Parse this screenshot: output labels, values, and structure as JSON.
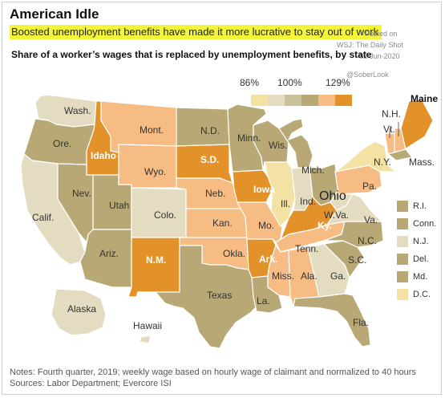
{
  "header": {
    "headline": "American Idle",
    "subhead": "Boosted unemployment benefits have made it more lucrative to stay out of work",
    "chart_title": "Share of a worker’s wages that is replaced by unemployment benefits, by state"
  },
  "watermark": {
    "posted": "Posted on",
    "source": "WSJ: The Daily Shot",
    "date": "02-Jun-2020",
    "handle": "@SoberLook"
  },
  "scale": {
    "labels": [
      "86%",
      "100%",
      "129%"
    ],
    "colors": [
      "#f3e2a4",
      "#e3dcc0",
      "#c7c29a",
      "#b8a875",
      "#f6bc84",
      "#e39229"
    ]
  },
  "map": {
    "states": [
      {
        "abbr": "Wash.",
        "fill": "#e3dcc0"
      },
      {
        "abbr": "Ore.",
        "fill": "#b8a875"
      },
      {
        "abbr": "Calif.",
        "fill": "#e3dcc0"
      },
      {
        "abbr": "Idaho",
        "fill": "#e39229"
      },
      {
        "abbr": "Nev.",
        "fill": "#b8a875"
      },
      {
        "abbr": "Utah",
        "fill": "#b8a875"
      },
      {
        "abbr": "Ariz.",
        "fill": "#b8a875"
      },
      {
        "abbr": "Mont.",
        "fill": "#f6bc84"
      },
      {
        "abbr": "Wyo.",
        "fill": "#f6bc84"
      },
      {
        "abbr": "Colo.",
        "fill": "#e3dcc0"
      },
      {
        "abbr": "N.M.",
        "fill": "#e39229"
      },
      {
        "abbr": "N.D.",
        "fill": "#b8a875"
      },
      {
        "abbr": "S.D.",
        "fill": "#e39229"
      },
      {
        "abbr": "Neb.",
        "fill": "#f6bc84"
      },
      {
        "abbr": "Kan.",
        "fill": "#f6bc84"
      },
      {
        "abbr": "Okla.",
        "fill": "#f6bc84"
      },
      {
        "abbr": "Texas",
        "fill": "#b8a875"
      },
      {
        "abbr": "Minn.",
        "fill": "#b8a875"
      },
      {
        "abbr": "Iowa",
        "fill": "#e39229"
      },
      {
        "abbr": "Mo.",
        "fill": "#f6bc84"
      },
      {
        "abbr": "Ark.",
        "fill": "#e39229"
      },
      {
        "abbr": "La.",
        "fill": "#b8a875"
      },
      {
        "abbr": "Wis.",
        "fill": "#b8a875"
      },
      {
        "abbr": "Ill.",
        "fill": "#f3e2a4"
      },
      {
        "abbr": "Mich.",
        "fill": "#b8a875"
      },
      {
        "abbr": "Ind.",
        "fill": "#e3dcc0"
      },
      {
        "abbr": "Ohio",
        "fill": "#b8a875"
      },
      {
        "abbr": "Ky.",
        "fill": "#e39229"
      },
      {
        "abbr": "Tenn.",
        "fill": "#f6bc84"
      },
      {
        "abbr": "Miss.",
        "fill": "#f6bc84"
      },
      {
        "abbr": "Ala.",
        "fill": "#f6bc84"
      },
      {
        "abbr": "Ga.",
        "fill": "#e3dcc0"
      },
      {
        "abbr": "Fla.",
        "fill": "#b8a875"
      },
      {
        "abbr": "S.C.",
        "fill": "#b8a875"
      },
      {
        "abbr": "N.C.",
        "fill": "#b8a875"
      },
      {
        "abbr": "Va.",
        "fill": "#e3dcc0"
      },
      {
        "abbr": "W.Va.",
        "fill": "#e3dcc0"
      },
      {
        "abbr": "Pa.",
        "fill": "#f6bc84"
      },
      {
        "abbr": "N.Y.",
        "fill": "#f3e2a4"
      },
      {
        "abbr": "Vt.",
        "fill": "#f6bc84"
      },
      {
        "abbr": "N.H.",
        "fill": "#f6bc84"
      },
      {
        "abbr": "Maine",
        "fill": "#e39229"
      },
      {
        "abbr": "Mass.",
        "fill": "#b8a875"
      },
      {
        "abbr": "Alaska",
        "fill": "#e3dcc0"
      },
      {
        "abbr": "Hawaii",
        "fill": "#e3dcc0"
      }
    ],
    "side_legend": [
      {
        "label": "R.I.",
        "fill": "#b8a875"
      },
      {
        "label": "Conn.",
        "fill": "#b8a875"
      },
      {
        "label": "N.J.",
        "fill": "#e3dcc0"
      },
      {
        "label": "Del.",
        "fill": "#b8a875"
      },
      {
        "label": "Md.",
        "fill": "#b8a875"
      },
      {
        "label": "D.C.",
        "fill": "#f3e2a4"
      }
    ]
  },
  "footer": {
    "notes": "Notes: Fourth quarter, 2019; weekly wage based on hourly wage of claimant and normalized to 40 hours",
    "sources": "Sources: Labor Department;  Evercore ISI"
  }
}
